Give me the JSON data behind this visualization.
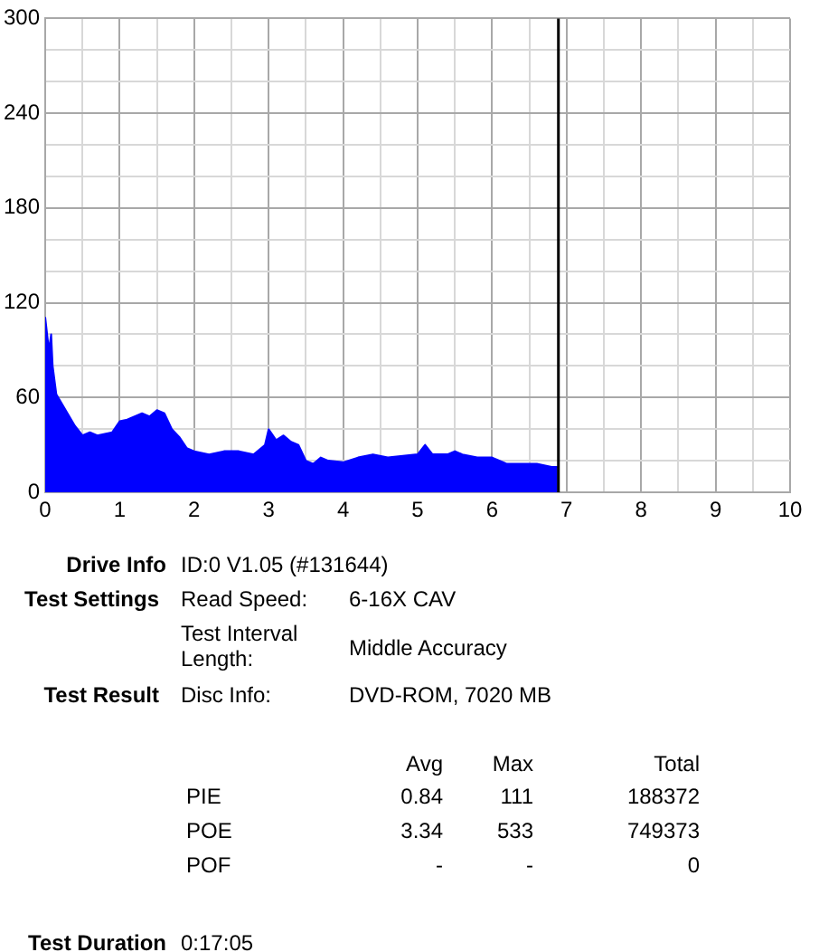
{
  "chart_data": {
    "type": "area",
    "x": [
      0,
      0.02,
      0.05,
      0.08,
      0.1,
      0.15,
      0.2,
      0.3,
      0.4,
      0.5,
      0.6,
      0.7,
      0.8,
      0.9,
      1.0,
      1.1,
      1.2,
      1.3,
      1.4,
      1.5,
      1.6,
      1.7,
      1.8,
      1.9,
      2.0,
      2.2,
      2.4,
      2.6,
      2.8,
      2.95,
      3.0,
      3.1,
      3.2,
      3.3,
      3.4,
      3.5,
      3.6,
      3.7,
      3.8,
      4.0,
      4.2,
      4.4,
      4.6,
      4.8,
      5.0,
      5.1,
      5.2,
      5.4,
      5.5,
      5.6,
      5.8,
      6.0,
      6.2,
      6.4,
      6.6,
      6.8,
      6.88
    ],
    "series": [
      {
        "color": "#0000ff",
        "values": [
          111,
          111,
          90,
          100,
          80,
          62,
          58,
          50,
          42,
          36,
          38,
          36,
          37,
          38,
          45,
          46,
          48,
          50,
          48,
          52,
          50,
          40,
          35,
          28,
          26,
          24,
          26,
          26,
          24,
          30,
          40,
          33,
          36,
          32,
          30,
          20,
          18,
          22,
          20,
          19,
          22,
          24,
          22,
          23,
          24,
          30,
          24,
          24,
          26,
          24,
          22,
          22,
          18,
          18,
          18,
          16,
          16
        ]
      }
    ],
    "xlim": [
      0,
      10
    ],
    "xticks": [
      0,
      {
        "value": 0.5,
        "label": null
      },
      1,
      {
        "value": 1.5,
        "label": null
      },
      2,
      {
        "value": 2.5,
        "label": null
      },
      3,
      {
        "value": 3.5,
        "label": null
      },
      4,
      {
        "value": 4.5,
        "label": null
      },
      5,
      {
        "value": 5.5,
        "label": null
      },
      6,
      {
        "value": 6.5,
        "label": null
      },
      7,
      {
        "value": 7.5,
        "label": null
      },
      8,
      {
        "value": 8.5,
        "label": null
      },
      9,
      {
        "value": 9.5,
        "label": null
      },
      10
    ],
    "ylim": [
      0,
      300
    ],
    "yticks": [
      0,
      {
        "value": 20,
        "label": null
      },
      {
        "value": 40,
        "label": null
      },
      60,
      {
        "value": 80,
        "label": null
      },
      {
        "value": 100,
        "label": null
      },
      120,
      {
        "value": 140,
        "label": null
      },
      {
        "value": 160,
        "label": null
      },
      180,
      {
        "value": 200,
        "label": null
      },
      {
        "value": 220,
        "label": null
      },
      240,
      {
        "value": 260,
        "label": null
      },
      {
        "value": 280,
        "label": null
      },
      300
    ],
    "grid": true,
    "legend": false,
    "marker": "none",
    "ref_lines": [
      {
        "axis": "x",
        "value": 6.89,
        "color": "#000000"
      }
    ],
    "annotations": [
      "Drive Info",
      "ID:0 V1.05 (#131644)",
      "Test Settings",
      "Read Speed:",
      "6-16X CAV",
      "Test Interval Length:",
      "Middle Accuracy",
      "Test Result",
      "Disc Info:",
      "DVD-ROM, 7020 MB",
      "Avg",
      "Max",
      "Total",
      "PIE",
      "0.84",
      "111",
      "188372",
      "POE",
      "3.34",
      "533",
      "749373",
      "POF",
      "-",
      "-",
      "0",
      "Test Duration",
      "0:17:05"
    ]
  }
}
